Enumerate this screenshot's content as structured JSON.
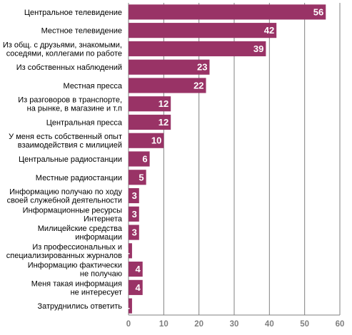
{
  "chart_data": {
    "type": "bar",
    "orientation": "horizontal",
    "categories": [
      [
        "Центральное телевидение"
      ],
      [
        "Местное телевидение"
      ],
      [
        "Из общ. с друзьями, знакомыми,",
        "соседями, коллегами по работе"
      ],
      [
        "Из собственных наблюдений"
      ],
      [
        "Местная пресса"
      ],
      [
        "Из разговоров в транспорте,",
        "на рынке, в магазине и т.п"
      ],
      [
        "Центральная пресса"
      ],
      [
        "У меня есть собственный опыт",
        "взаимодействия с милицией"
      ],
      [
        "Центральные радиостанции"
      ],
      [
        "Местные радиостанции"
      ],
      [
        "Информацию получаю по ходу",
        "своей служебной деятельности"
      ],
      [
        "Информационные ресурсы",
        "Интернета"
      ],
      [
        "Милицейские средства",
        "информации"
      ],
      [
        "Из профессиональных и",
        "специализированных журналов"
      ],
      [
        "Информацию фактически",
        "не получаю"
      ],
      [
        "Меня такая информация",
        "не интересует"
      ],
      [
        "Затруднились ответить"
      ]
    ],
    "values": [
      56,
      42,
      39,
      23,
      22,
      12,
      12,
      10,
      6,
      5,
      3,
      3,
      3,
      1,
      4,
      4,
      1
    ],
    "xlim": [
      0,
      60
    ],
    "xticks": [
      "0",
      "10",
      "20",
      "30",
      "40",
      "50",
      "60"
    ],
    "grid": true,
    "title": "",
    "xlabel": "",
    "ylabel": "",
    "colors": {
      "bar": "#993366",
      "grid": "#808080",
      "tick": "#7f7f7f"
    }
  }
}
